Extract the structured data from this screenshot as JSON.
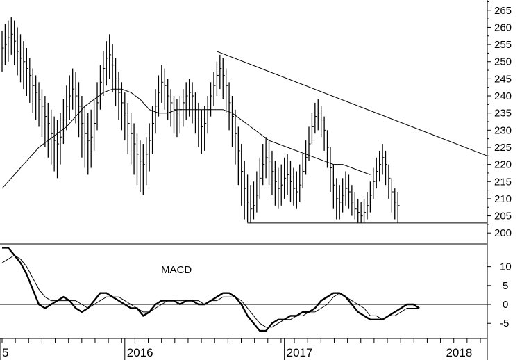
{
  "chart_data": [
    {
      "type": "ohlc",
      "panel": "price",
      "y_ticks": [
        200,
        205,
        210,
        215,
        220,
        225,
        230,
        235,
        240,
        245,
        250,
        255,
        260,
        265
      ],
      "ylim": [
        197,
        268
      ],
      "weeks": 156,
      "bars": [
        [
          259,
          254,
          247
        ],
        [
          261,
          255,
          249
        ],
        [
          262,
          257,
          250
        ],
        [
          263,
          258,
          252
        ],
        [
          262,
          256,
          249
        ],
        [
          260,
          253,
          246
        ],
        [
          258,
          251,
          244
        ],
        [
          256,
          250,
          242
        ],
        [
          254,
          248,
          240
        ],
        [
          251,
          246,
          238
        ],
        [
          248,
          243,
          235
        ],
        [
          246,
          241,
          233
        ],
        [
          244,
          239,
          231
        ],
        [
          242,
          237,
          228
        ],
        [
          240,
          234,
          225
        ],
        [
          238,
          232,
          222
        ],
        [
          236,
          229,
          220
        ],
        [
          234,
          227,
          218
        ],
        [
          233,
          226,
          216
        ],
        [
          235,
          228,
          220
        ],
        [
          239,
          233,
          226
        ],
        [
          243,
          237,
          230
        ],
        [
          246,
          240,
          233
        ],
        [
          248,
          242,
          236
        ],
        [
          247,
          240,
          232
        ],
        [
          244,
          237,
          228
        ],
        [
          240,
          232,
          222
        ],
        [
          237,
          229,
          219
        ],
        [
          235,
          227,
          217
        ],
        [
          236,
          228,
          219
        ],
        [
          239,
          232,
          224
        ],
        [
          244,
          238,
          230
        ],
        [
          249,
          244,
          236
        ],
        [
          253,
          248,
          240
        ],
        [
          256,
          251,
          243
        ],
        [
          258,
          252,
          245
        ],
        [
          255,
          249,
          241
        ],
        [
          251,
          245,
          237
        ],
        [
          247,
          241,
          233
        ],
        [
          244,
          238,
          230
        ],
        [
          241,
          235,
          227
        ],
        [
          238,
          232,
          223
        ],
        [
          235,
          229,
          220
        ],
        [
          232,
          226,
          217
        ],
        [
          229,
          223,
          214
        ],
        [
          227,
          221,
          212
        ],
        [
          226,
          220,
          211
        ],
        [
          228,
          223,
          214
        ],
        [
          232,
          227,
          218
        ],
        [
          237,
          232,
          223
        ],
        [
          242,
          237,
          229
        ],
        [
          246,
          241,
          234
        ],
        [
          249,
          244,
          238
        ],
        [
          248,
          243,
          236
        ],
        [
          245,
          240,
          233
        ],
        [
          242,
          238,
          231
        ],
        [
          240,
          236,
          229
        ],
        [
          239,
          235,
          228
        ],
        [
          240,
          236,
          229
        ],
        [
          242,
          238,
          231
        ],
        [
          244,
          240,
          233
        ],
        [
          245,
          241,
          234
        ],
        [
          244,
          240,
          232
        ],
        [
          241,
          236,
          229
        ],
        [
          238,
          233,
          225
        ],
        [
          236,
          231,
          223
        ],
        [
          237,
          232,
          224
        ],
        [
          240,
          236,
          229
        ],
        [
          244,
          240,
          234
        ],
        [
          247,
          243,
          237
        ],
        [
          250,
          246,
          240
        ],
        [
          252,
          248,
          242
        ],
        [
          251,
          246,
          239
        ],
        [
          248,
          243,
          235
        ],
        [
          244,
          238,
          230
        ],
        [
          240,
          234,
          225
        ],
        [
          236,
          229,
          220
        ],
        [
          231,
          224,
          214
        ],
        [
          226,
          218,
          208
        ],
        [
          221,
          213,
          204
        ],
        [
          217,
          209,
          203
        ],
        [
          214,
          207,
          203
        ],
        [
          215,
          208,
          204
        ],
        [
          218,
          211,
          206
        ],
        [
          222,
          216,
          210
        ],
        [
          226,
          220,
          214
        ],
        [
          228,
          222,
          216
        ],
        [
          227,
          221,
          214
        ],
        [
          224,
          218,
          211
        ],
        [
          221,
          215,
          208
        ],
        [
          219,
          213,
          207
        ],
        [
          220,
          214,
          208
        ],
        [
          222,
          216,
          210
        ],
        [
          223,
          217,
          211
        ],
        [
          221,
          215,
          209
        ],
        [
          219,
          213,
          208
        ],
        [
          218,
          212,
          207
        ],
        [
          220,
          214,
          209
        ],
        [
          223,
          218,
          213
        ],
        [
          227,
          222,
          217
        ],
        [
          231,
          226,
          221
        ],
        [
          235,
          231,
          226
        ],
        [
          238,
          234,
          229
        ],
        [
          239,
          235,
          230
        ],
        [
          237,
          233,
          228
        ],
        [
          234,
          230,
          224
        ],
        [
          230,
          225,
          219
        ],
        [
          225,
          219,
          212
        ],
        [
          220,
          214,
          207
        ],
        [
          216,
          210,
          204
        ],
        [
          214,
          209,
          204
        ],
        [
          216,
          211,
          206
        ],
        [
          218,
          213,
          208
        ],
        [
          217,
          212,
          207
        ],
        [
          214,
          209,
          205
        ],
        [
          212,
          207,
          204
        ],
        [
          210,
          206,
          203
        ],
        [
          209,
          205,
          203
        ],
        [
          210,
          206,
          203
        ],
        [
          212,
          208,
          204
        ],
        [
          215,
          211,
          206
        ],
        [
          219,
          215,
          210
        ],
        [
          222,
          218,
          213
        ],
        [
          224,
          220,
          215
        ],
        [
          226,
          222,
          217
        ],
        [
          224,
          220,
          214
        ],
        [
          220,
          216,
          210
        ],
        [
          216,
          212,
          206
        ],
        [
          213,
          209,
          204
        ],
        [
          212,
          208,
          203
        ]
      ],
      "moving_average": [
        [
          0,
          213
        ],
        [
          3,
          216
        ],
        [
          6,
          219
        ],
        [
          9,
          222
        ],
        [
          12,
          225
        ],
        [
          15,
          227
        ],
        [
          18,
          229
        ],
        [
          21,
          231
        ],
        [
          24,
          234
        ],
        [
          27,
          237
        ],
        [
          30,
          239
        ],
        [
          33,
          241
        ],
        [
          36,
          242
        ],
        [
          39,
          242
        ],
        [
          42,
          241
        ],
        [
          45,
          239
        ],
        [
          48,
          236
        ],
        [
          51,
          235
        ],
        [
          54,
          235
        ],
        [
          57,
          236
        ],
        [
          60,
          236
        ],
        [
          63,
          236
        ],
        [
          66,
          236
        ],
        [
          69,
          236
        ],
        [
          72,
          236
        ],
        [
          75,
          235
        ],
        [
          78,
          233
        ],
        [
          81,
          231
        ],
        [
          84,
          229
        ],
        [
          87,
          227
        ],
        [
          90,
          226
        ],
        [
          93,
          225
        ],
        [
          96,
          224
        ],
        [
          99,
          223
        ],
        [
          102,
          222
        ],
        [
          105,
          221
        ],
        [
          108,
          220
        ],
        [
          111,
          220
        ],
        [
          114,
          219
        ],
        [
          117,
          218
        ],
        [
          120,
          217
        ]
      ],
      "resistance_line": [
        [
          70,
          253
        ],
        [
          156,
          222.5
        ]
      ],
      "support_line": [
        [
          80,
          202.9
        ],
        [
          156,
          202.9
        ]
      ]
    },
    {
      "type": "line",
      "panel": "indicator",
      "title": "MACD",
      "y_ticks": [
        -5,
        0,
        5,
        10
      ],
      "ylim": [
        -9,
        16
      ],
      "zero_line": true,
      "macd": [
        [
          0,
          15
        ],
        [
          2,
          15
        ],
        [
          4,
          13
        ],
        [
          6,
          11
        ],
        [
          8,
          8
        ],
        [
          10,
          4
        ],
        [
          12,
          0
        ],
        [
          14,
          -1
        ],
        [
          16,
          0
        ],
        [
          18,
          1
        ],
        [
          20,
          2
        ],
        [
          22,
          1
        ],
        [
          24,
          -1
        ],
        [
          26,
          -2
        ],
        [
          28,
          -1
        ],
        [
          30,
          1
        ],
        [
          32,
          3
        ],
        [
          34,
          3
        ],
        [
          36,
          2
        ],
        [
          38,
          1
        ],
        [
          40,
          0
        ],
        [
          42,
          -1
        ],
        [
          44,
          -1
        ],
        [
          46,
          -3
        ],
        [
          48,
          -2
        ],
        [
          50,
          0
        ],
        [
          52,
          1
        ],
        [
          54,
          1
        ],
        [
          56,
          1
        ],
        [
          58,
          0
        ],
        [
          60,
          1
        ],
        [
          62,
          1
        ],
        [
          64,
          0
        ],
        [
          66,
          0
        ],
        [
          68,
          1
        ],
        [
          70,
          2
        ],
        [
          72,
          3
        ],
        [
          74,
          3
        ],
        [
          76,
          2
        ],
        [
          78,
          0
        ],
        [
          80,
          -3
        ],
        [
          82,
          -5
        ],
        [
          84,
          -7
        ],
        [
          86,
          -7
        ],
        [
          88,
          -5
        ],
        [
          90,
          -4
        ],
        [
          92,
          -4
        ],
        [
          94,
          -3
        ],
        [
          96,
          -3
        ],
        [
          98,
          -2
        ],
        [
          100,
          -2
        ],
        [
          102,
          -1
        ],
        [
          104,
          1
        ],
        [
          106,
          2
        ],
        [
          108,
          3
        ],
        [
          110,
          3
        ],
        [
          112,
          2
        ],
        [
          114,
          0
        ],
        [
          116,
          -2
        ],
        [
          118,
          -3
        ],
        [
          120,
          -4
        ],
        [
          122,
          -4
        ],
        [
          124,
          -4
        ],
        [
          126,
          -3
        ],
        [
          128,
          -2
        ],
        [
          130,
          -1
        ],
        [
          132,
          0
        ],
        [
          134,
          0
        ],
        [
          136,
          -1
        ]
      ],
      "signal": [
        [
          0,
          11
        ],
        [
          2,
          12
        ],
        [
          4,
          13
        ],
        [
          6,
          12
        ],
        [
          8,
          10
        ],
        [
          10,
          7
        ],
        [
          12,
          4
        ],
        [
          14,
          2
        ],
        [
          16,
          1
        ],
        [
          18,
          1
        ],
        [
          20,
          1
        ],
        [
          22,
          1
        ],
        [
          24,
          1
        ],
        [
          26,
          0
        ],
        [
          28,
          -1
        ],
        [
          30,
          0
        ],
        [
          32,
          1
        ],
        [
          34,
          2
        ],
        [
          36,
          2
        ],
        [
          38,
          2
        ],
        [
          40,
          1
        ],
        [
          42,
          0
        ],
        [
          44,
          -1
        ],
        [
          46,
          -2
        ],
        [
          48,
          -2
        ],
        [
          50,
          -1
        ],
        [
          52,
          0
        ],
        [
          54,
          1
        ],
        [
          56,
          1
        ],
        [
          58,
          1
        ],
        [
          60,
          1
        ],
        [
          62,
          1
        ],
        [
          64,
          1
        ],
        [
          66,
          0
        ],
        [
          68,
          1
        ],
        [
          70,
          1
        ],
        [
          72,
          2
        ],
        [
          74,
          2
        ],
        [
          76,
          2
        ],
        [
          78,
          1
        ],
        [
          80,
          -1
        ],
        [
          82,
          -3
        ],
        [
          84,
          -5
        ],
        [
          86,
          -6
        ],
        [
          88,
          -6
        ],
        [
          90,
          -5
        ],
        [
          92,
          -4
        ],
        [
          94,
          -4
        ],
        [
          96,
          -3
        ],
        [
          98,
          -3
        ],
        [
          100,
          -2
        ],
        [
          102,
          -2
        ],
        [
          104,
          -1
        ],
        [
          106,
          0
        ],
        [
          108,
          2
        ],
        [
          110,
          3
        ],
        [
          112,
          2
        ],
        [
          114,
          1
        ],
        [
          116,
          0
        ],
        [
          118,
          -1
        ],
        [
          120,
          -3
        ],
        [
          122,
          -3
        ],
        [
          124,
          -4
        ],
        [
          126,
          -3
        ],
        [
          128,
          -3
        ],
        [
          130,
          -2
        ],
        [
          132,
          -1
        ],
        [
          134,
          -1
        ],
        [
          136,
          -1
        ]
      ]
    }
  ],
  "x_axis": {
    "year_labels": [
      {
        "label": "5",
        "week": 0
      },
      {
        "label": "2016",
        "week": 40
      },
      {
        "label": "2017",
        "week": 92
      },
      {
        "label": "2018",
        "week": 144
      }
    ],
    "tick_interval_weeks": 4.33
  },
  "colors": {
    "line": "#000000",
    "background": "#ffffff"
  }
}
